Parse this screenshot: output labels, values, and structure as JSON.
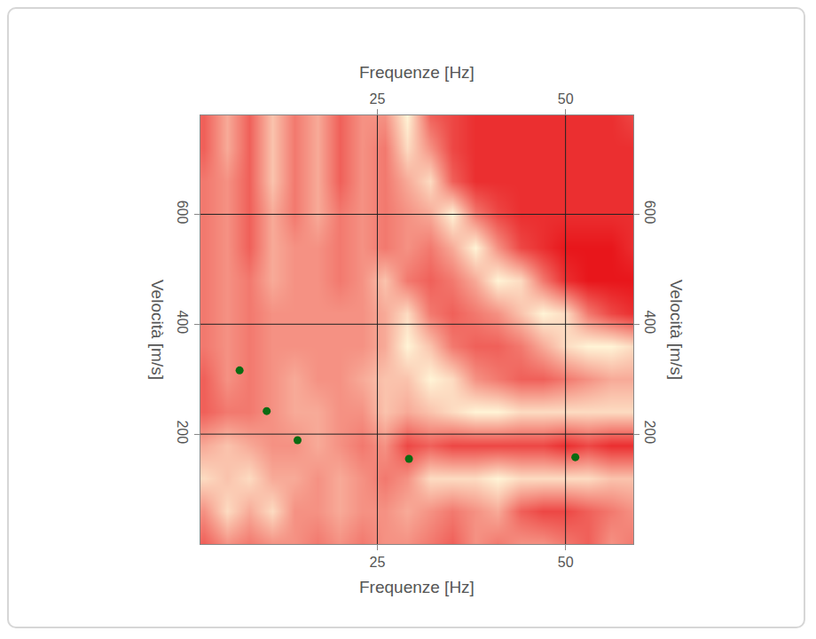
{
  "chart_data": {
    "type": "heatmap",
    "x_label": "Frequenze [Hz]",
    "y_label": "Velocità [m/s]",
    "xlim": [
      1.5,
      59
    ],
    "ylim": [
      0,
      780
    ],
    "xticks": [
      25,
      50
    ],
    "yticks": [
      200,
      400,
      600
    ],
    "grid": true,
    "heatmap": {
      "colors": [
        "#e8161b",
        "#fff4d6"
      ],
      "x": [
        2,
        5,
        8,
        11,
        14,
        17,
        20,
        23,
        26,
        29,
        32,
        35,
        38,
        41,
        44,
        47,
        50,
        53,
        56,
        59
      ],
      "y": [
        0,
        60,
        120,
        180,
        240,
        300,
        360,
        420,
        480,
        540,
        600,
        660,
        720,
        780
      ],
      "z": [
        [
          0.3,
          0.5,
          0.4,
          0.5,
          0.5,
          0.4,
          0.5,
          0.4,
          0.5,
          0.5,
          0.4,
          0.3,
          0.5,
          0.4,
          0.5,
          0.5,
          0.4,
          0.3,
          0.5,
          0.4
        ],
        [
          0.5,
          0.8,
          0.6,
          0.8,
          0.5,
          0.5,
          0.6,
          0.5,
          0.5,
          0.6,
          0.5,
          0.4,
          0.5,
          0.6,
          0.3,
          0.2,
          0.2,
          0.3,
          0.4,
          0.5
        ],
        [
          0.8,
          0.7,
          0.8,
          0.6,
          0.6,
          0.5,
          0.6,
          0.5,
          0.4,
          0.5,
          0.8,
          0.8,
          0.8,
          0.9,
          0.8,
          0.8,
          0.8,
          0.8,
          0.7,
          0.7
        ],
        [
          0.6,
          0.7,
          0.6,
          0.5,
          0.5,
          0.6,
          0.5,
          0.4,
          0.5,
          0.2,
          0.3,
          0.2,
          0.2,
          0.2,
          0.2,
          0.2,
          0.1,
          0.2,
          0.1,
          0.1
        ],
        [
          0.3,
          0.4,
          0.4,
          0.5,
          0.6,
          0.6,
          0.5,
          0.5,
          0.7,
          0.6,
          0.7,
          0.8,
          0.9,
          0.9,
          0.8,
          0.8,
          0.8,
          0.8,
          0.8,
          0.8
        ],
        [
          0.3,
          0.5,
          0.4,
          0.5,
          0.6,
          0.5,
          0.5,
          0.6,
          0.7,
          0.7,
          0.9,
          0.8,
          0.5,
          0.4,
          0.3,
          0.3,
          0.4,
          0.5,
          0.6,
          0.6
        ],
        [
          0.4,
          0.5,
          0.4,
          0.5,
          0.5,
          0.5,
          0.5,
          0.5,
          0.6,
          0.9,
          0.7,
          0.4,
          0.3,
          0.3,
          0.4,
          0.6,
          0.8,
          0.9,
          0.9,
          0.8
        ],
        [
          0.4,
          0.5,
          0.4,
          0.5,
          0.5,
          0.5,
          0.5,
          0.5,
          0.6,
          0.8,
          0.4,
          0.3,
          0.4,
          0.5,
          0.7,
          0.9,
          0.8,
          0.4,
          0.2,
          0.1
        ],
        [
          0.4,
          0.5,
          0.4,
          0.6,
          0.5,
          0.5,
          0.4,
          0.5,
          0.7,
          0.4,
          0.3,
          0.4,
          0.6,
          0.9,
          0.8,
          0.4,
          0.1,
          0.0,
          0.0,
          0.0
        ],
        [
          0.4,
          0.5,
          0.3,
          0.6,
          0.5,
          0.5,
          0.4,
          0.5,
          0.4,
          0.5,
          0.4,
          0.6,
          0.9,
          0.5,
          0.2,
          0.1,
          0.0,
          0.0,
          0.0,
          0.1
        ],
        [
          0.4,
          0.5,
          0.3,
          0.6,
          0.4,
          0.6,
          0.4,
          0.5,
          0.4,
          0.5,
          0.6,
          0.9,
          0.4,
          0.2,
          0.1,
          0.1,
          0.1,
          0.1,
          0.1,
          0.1
        ],
        [
          0.4,
          0.5,
          0.3,
          0.7,
          0.4,
          0.6,
          0.3,
          0.5,
          0.4,
          0.6,
          0.8,
          0.3,
          0.1,
          0.1,
          0.1,
          0.1,
          0.1,
          0.1,
          0.1,
          0.1
        ],
        [
          0.3,
          0.6,
          0.3,
          0.7,
          0.4,
          0.6,
          0.3,
          0.5,
          0.4,
          0.8,
          0.5,
          0.2,
          0.1,
          0.1,
          0.1,
          0.1,
          0.1,
          0.1,
          0.1,
          0.1
        ],
        [
          0.3,
          0.6,
          0.3,
          0.7,
          0.4,
          0.6,
          0.3,
          0.5,
          0.5,
          0.9,
          0.3,
          0.2,
          0.1,
          0.1,
          0.1,
          0.1,
          0.1,
          0.1,
          0.1,
          0.2
        ]
      ]
    },
    "series": [
      {
        "type": "scatter",
        "marker": "circle",
        "color": "#0b6b12",
        "x": [
          6.7,
          10.3,
          14.4,
          29.2,
          51.3
        ],
        "y": [
          316,
          242,
          189,
          155,
          158
        ]
      }
    ]
  }
}
